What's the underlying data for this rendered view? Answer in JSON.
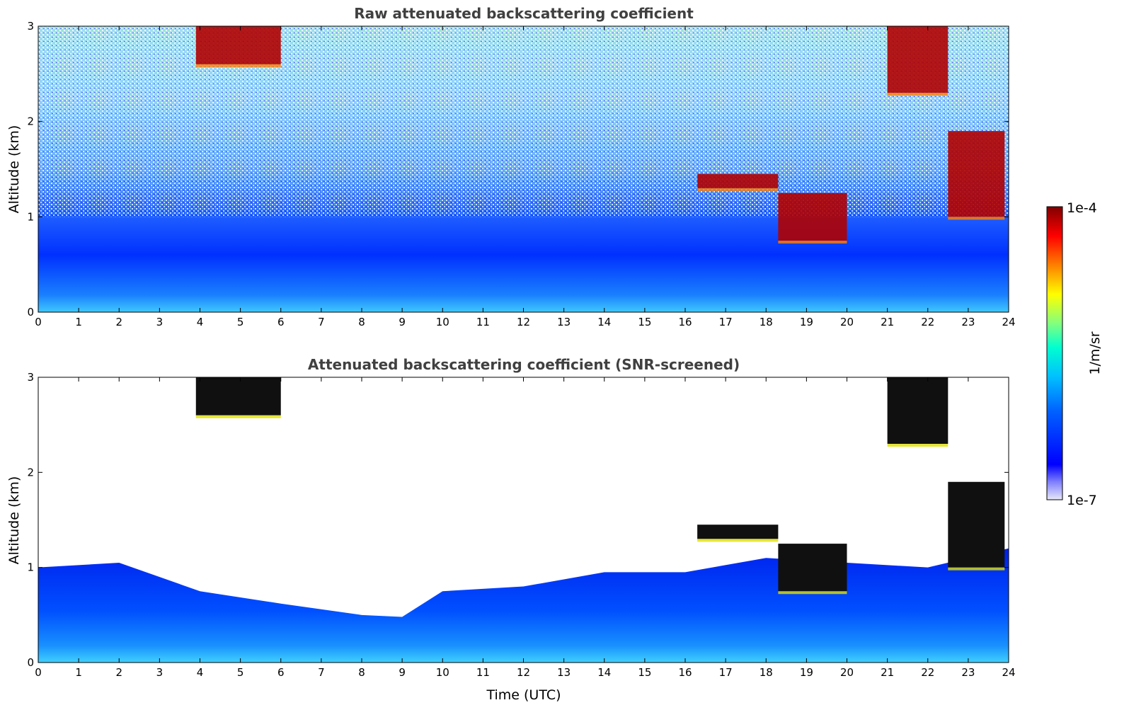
{
  "chart_data": [
    {
      "type": "heatmap",
      "title": "Raw attenuated backscattering coefficient",
      "xlabel": "",
      "ylabel": "Altitude (km)",
      "xlim": [
        0,
        24
      ],
      "ylim": [
        0,
        3
      ],
      "x_ticks": [
        "0",
        "1",
        "2",
        "3",
        "4",
        "5",
        "6",
        "7",
        "8",
        "9",
        "10",
        "11",
        "12",
        "13",
        "14",
        "15",
        "16",
        "17",
        "18",
        "19",
        "20",
        "21",
        "22",
        "23",
        "24"
      ],
      "y_ticks": [
        "0",
        "1",
        "2",
        "3"
      ],
      "noise_ceiling_km": 1.0,
      "cloud_layers": [
        {
          "x": [
            3.9,
            6.0
          ],
          "y_top": 3.0,
          "y_base": 2.6
        },
        {
          "x": [
            16.3,
            18.3
          ],
          "y_top": 1.45,
          "y_base": 1.3
        },
        {
          "x": [
            18.3,
            20.0
          ],
          "y_top": 1.25,
          "y_base": 0.75
        },
        {
          "x": [
            21.0,
            22.5
          ],
          "y_top": 3.0,
          "y_base": 2.3
        },
        {
          "x": [
            22.5,
            23.9
          ],
          "y_top": 1.9,
          "y_base": 1.0
        }
      ]
    },
    {
      "type": "heatmap",
      "title": "Attenuated backscattering coefficient (SNR-screened)",
      "xlabel": "Time (UTC)",
      "ylabel": "Altitude (km)",
      "xlim": [
        0,
        24
      ],
      "ylim": [
        0,
        3
      ],
      "x_ticks": [
        "0",
        "1",
        "2",
        "3",
        "4",
        "5",
        "6",
        "7",
        "8",
        "9",
        "10",
        "11",
        "12",
        "13",
        "14",
        "15",
        "16",
        "17",
        "18",
        "19",
        "20",
        "21",
        "22",
        "23",
        "24"
      ],
      "y_ticks": [
        "0",
        "1",
        "2",
        "3"
      ],
      "boundary_layer_top_km": [
        {
          "x": 0,
          "y": 1.0
        },
        {
          "x": 2,
          "y": 1.05
        },
        {
          "x": 4,
          "y": 0.75
        },
        {
          "x": 6,
          "y": 0.62
        },
        {
          "x": 8,
          "y": 0.5
        },
        {
          "x": 9,
          "y": 0.48
        },
        {
          "x": 10,
          "y": 0.75
        },
        {
          "x": 12,
          "y": 0.8
        },
        {
          "x": 14,
          "y": 0.95
        },
        {
          "x": 16,
          "y": 0.95
        },
        {
          "x": 18,
          "y": 1.1
        },
        {
          "x": 20,
          "y": 1.05
        },
        {
          "x": 22,
          "y": 1.0
        },
        {
          "x": 24,
          "y": 1.2
        }
      ]
    }
  ],
  "colorbar": {
    "label": "1/m/sr",
    "max_label": "1e-4",
    "min_label": "1e-7",
    "scale": "log",
    "colors": [
      "#e8e8f8",
      "#0000ff",
      "#00a0ff",
      "#00ffff",
      "#80ff80",
      "#ffff00",
      "#ff8000",
      "#ff0000",
      "#800000"
    ]
  }
}
